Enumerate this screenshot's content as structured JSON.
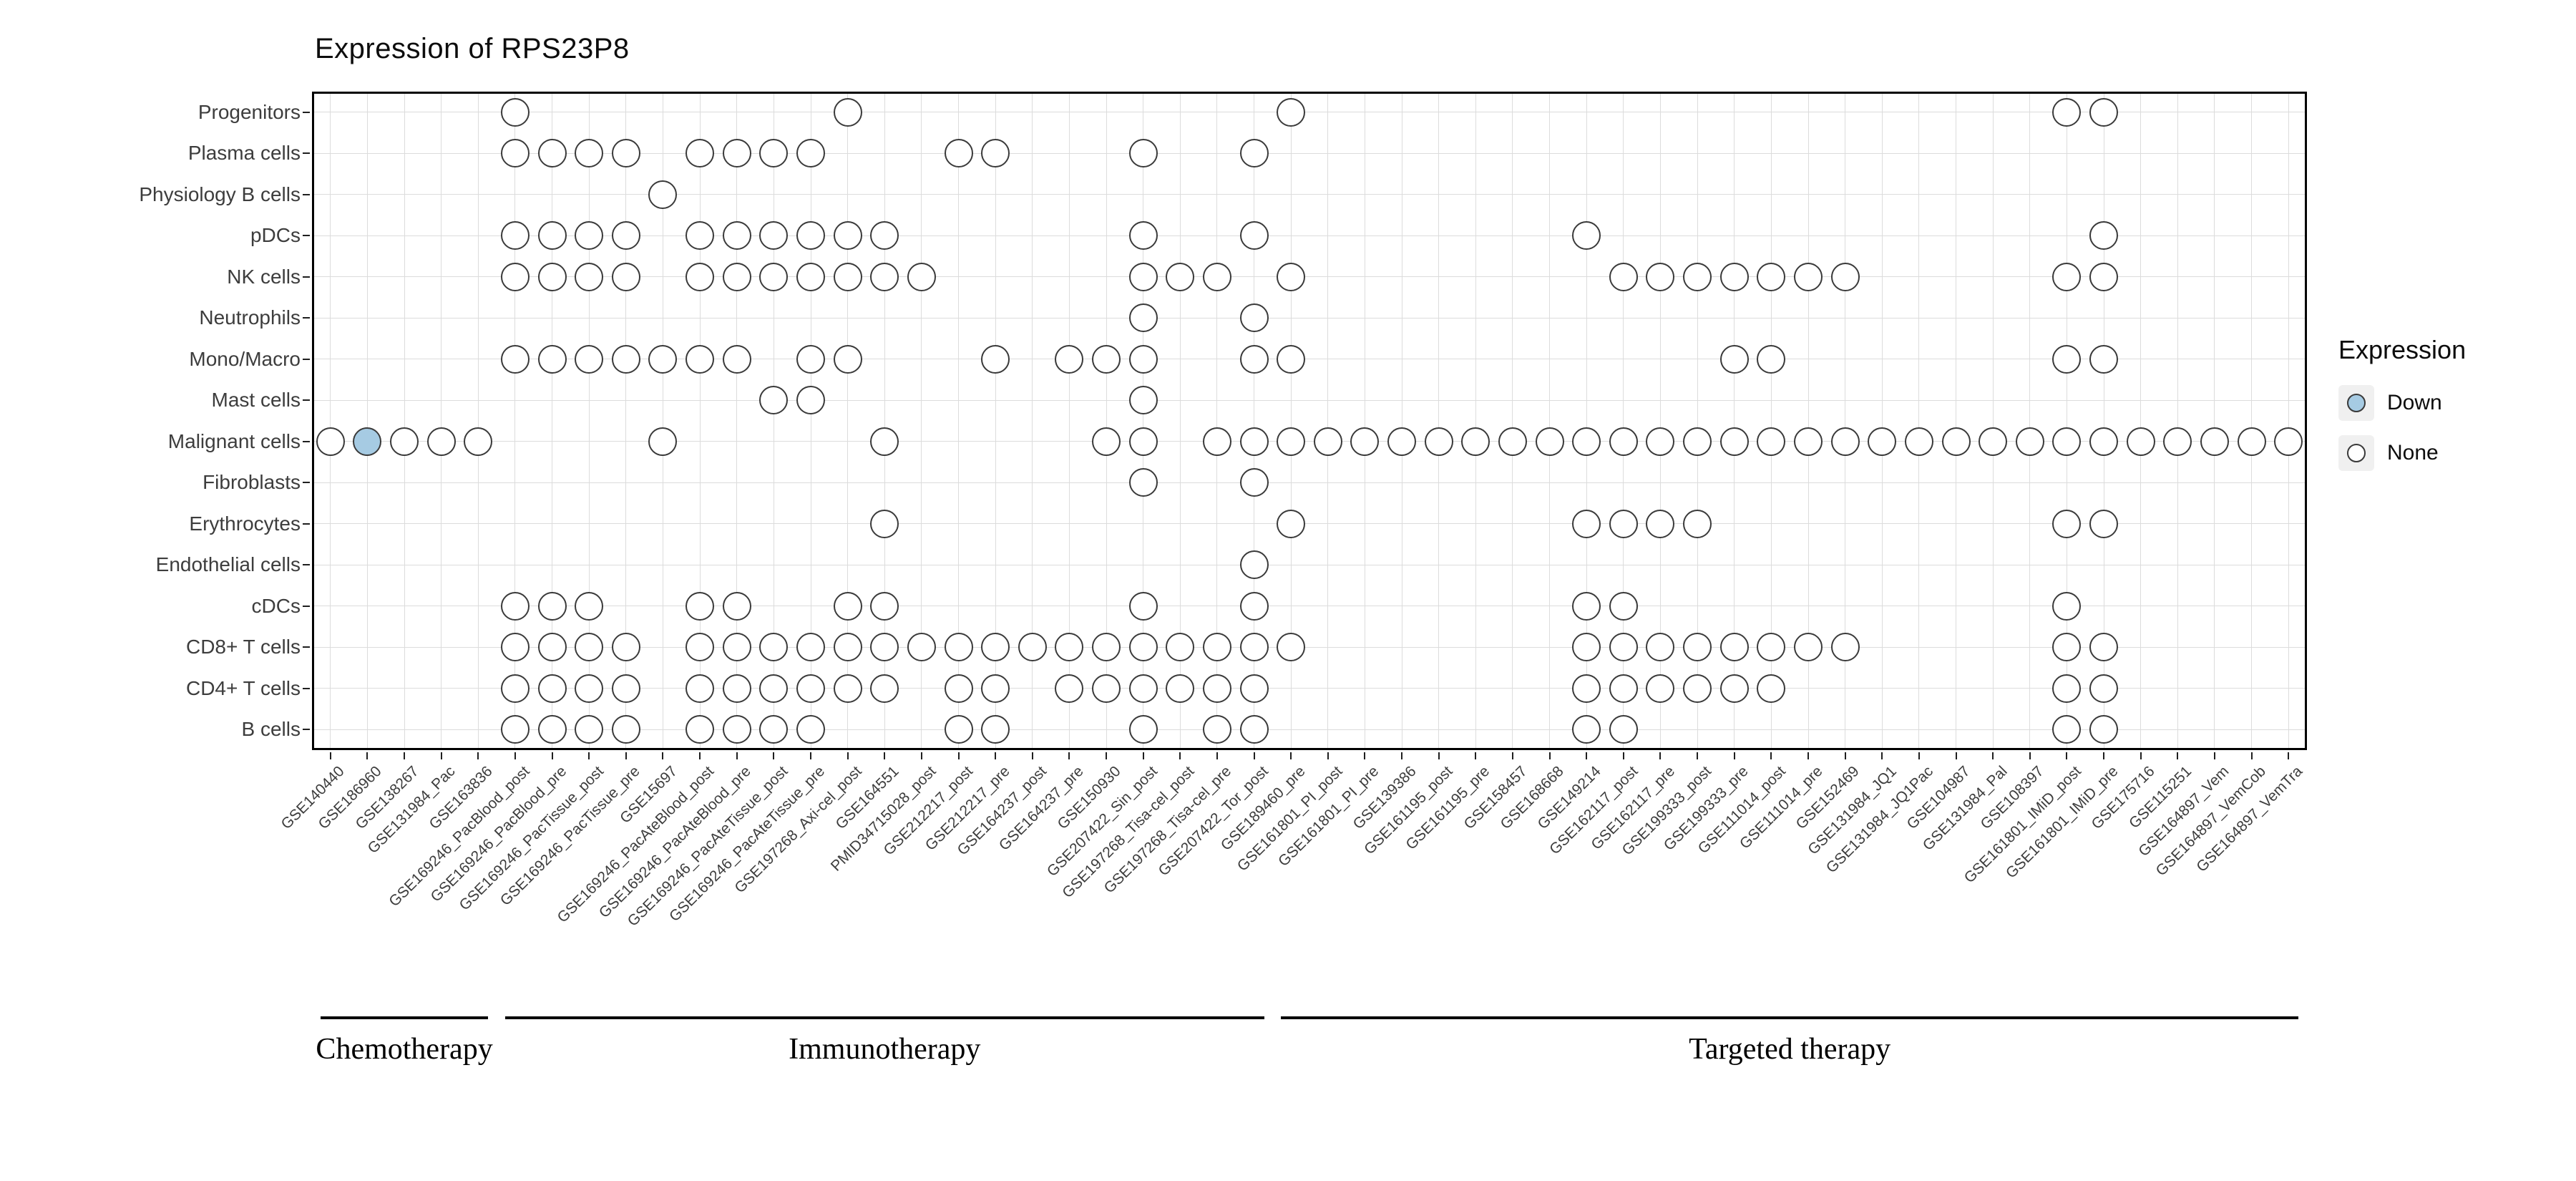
{
  "chart_data": {
    "type": "dot-matrix",
    "title": "Expression of RPS23P8",
    "legend": {
      "title": "Expression",
      "entries": [
        {
          "label": "Down",
          "fill": "#a6cbe3"
        },
        {
          "label": "None",
          "fill": "#ffffff"
        }
      ]
    },
    "rows": [
      "Progenitors",
      "Plasma cells",
      "Physiology B cells",
      "pDCs",
      "NK cells",
      "Neutrophils",
      "Mono/Macro",
      "Mast cells",
      "Malignant cells",
      "Fibroblasts",
      "Erythrocytes",
      "Endothelial cells",
      "cDCs",
      "CD8+ T cells",
      "CD4+ T cells",
      "B cells"
    ],
    "columns": [
      "GSE140440",
      "GSE186960",
      "GSE138267",
      "GSE131984_Pac",
      "GSE163836",
      "GSE169246_PacBlood_post",
      "GSE169246_PacBlood_pre",
      "GSE169246_PacTissue_post",
      "GSE169246_PacTissue_pre",
      "GSE15697",
      "GSE169246_PacAteBlood_post",
      "GSE169246_PacAteBlood_pre",
      "GSE169246_PacAteTissue_post",
      "GSE169246_PacAteTissue_pre",
      "GSE197268_Axi-cel_post",
      "GSE164551",
      "PMID34715028_post",
      "GSE212217_post",
      "GSE212217_pre",
      "GSE164237_post",
      "GSE164237_pre",
      "GSE150930",
      "GSE207422_Sin_post",
      "GSE197268_Tisa-cel_post",
      "GSE197268_Tisa-cel_pre",
      "GSE207422_Tor_post",
      "GSE189460_pre",
      "GSE161801_PI_post",
      "GSE161801_PI_pre",
      "GSE139386",
      "GSE161195_post",
      "GSE161195_pre",
      "GSE158457",
      "GSE168668",
      "GSE149214",
      "GSE162117_post",
      "GSE162117_pre",
      "GSE199333_post",
      "GSE199333_pre",
      "GSE111014_post",
      "GSE111014_pre",
      "GSE152469",
      "GSE131984_JQ1",
      "GSE131984_JQ1Pac",
      "GSE104987",
      "GSE131984_Pal",
      "GSE108397",
      "GSE161801_IMiD_post",
      "GSE161801_IMiD_pre",
      "GSE175716",
      "GSE115251",
      "GSE164897_Vem",
      "GSE164897_VemCob",
      "GSE164897_VemTra"
    ],
    "column_groups": [
      {
        "label": "Chemotherapy",
        "start": 0,
        "end": 4
      },
      {
        "label": "Immunotherapy",
        "start": 5,
        "end": 25
      },
      {
        "label": "Targeted therapy",
        "start": 26,
        "end": 53
      }
    ],
    "points": {
      "Progenitors": [
        5,
        14,
        26,
        47,
        48
      ],
      "Plasma cells": [
        5,
        6,
        7,
        8,
        10,
        11,
        12,
        13,
        17,
        18,
        22,
        25
      ],
      "Physiology B cells": [
        9
      ],
      "pDCs": [
        5,
        6,
        7,
        8,
        10,
        11,
        12,
        13,
        14,
        15,
        22,
        25,
        34,
        48
      ],
      "NK cells": [
        5,
        6,
        7,
        8,
        10,
        11,
        12,
        13,
        14,
        15,
        16,
        22,
        23,
        24,
        26,
        35,
        36,
        37,
        38,
        39,
        40,
        41,
        47,
        48
      ],
      "Neutrophils": [
        22,
        25
      ],
      "Mono/Macro": [
        5,
        6,
        7,
        8,
        9,
        10,
        11,
        13,
        14,
        18,
        20,
        21,
        22,
        25,
        26,
        38,
        39,
        47,
        48
      ],
      "Mast cells": [
        12,
        13,
        22
      ],
      "Malignant cells": [
        0,
        1,
        2,
        3,
        4,
        9,
        15,
        21,
        22,
        24,
        25,
        26,
        27,
        28,
        29,
        30,
        31,
        32,
        33,
        34,
        35,
        36,
        37,
        38,
        39,
        40,
        41,
        42,
        43,
        44,
        45,
        46,
        47,
        48,
        49,
        50,
        51,
        52,
        53
      ],
      "Fibroblasts": [
        22,
        25
      ],
      "Erythrocytes": [
        15,
        26,
        34,
        35,
        36,
        37,
        47,
        48
      ],
      "Endothelial cells": [
        25
      ],
      "cDCs": [
        5,
        6,
        7,
        10,
        11,
        14,
        15,
        22,
        25,
        34,
        35,
        47
      ],
      "CD8+ T cells": [
        5,
        6,
        7,
        8,
        10,
        11,
        12,
        13,
        14,
        15,
        16,
        17,
        18,
        19,
        20,
        21,
        22,
        23,
        24,
        25,
        26,
        34,
        35,
        36,
        37,
        38,
        39,
        40,
        41,
        47,
        48
      ],
      "CD4+ T cells": [
        5,
        6,
        7,
        8,
        10,
        11,
        12,
        13,
        14,
        15,
        17,
        18,
        20,
        21,
        22,
        23,
        24,
        25,
        34,
        35,
        36,
        37,
        38,
        39,
        47,
        48
      ],
      "B cells": [
        5,
        6,
        7,
        8,
        10,
        11,
        12,
        13,
        17,
        18,
        22,
        24,
        25,
        34,
        35,
        47,
        48
      ]
    },
    "down_points": [
      {
        "row": "Malignant cells",
        "col": 1
      }
    ],
    "colors": {
      "down_fill": "#a6cbe3",
      "none_fill": "#ffffff",
      "dot_stroke": "#3a3a3a",
      "grid": "#dcdcdc",
      "panel_border": "#000000"
    }
  }
}
